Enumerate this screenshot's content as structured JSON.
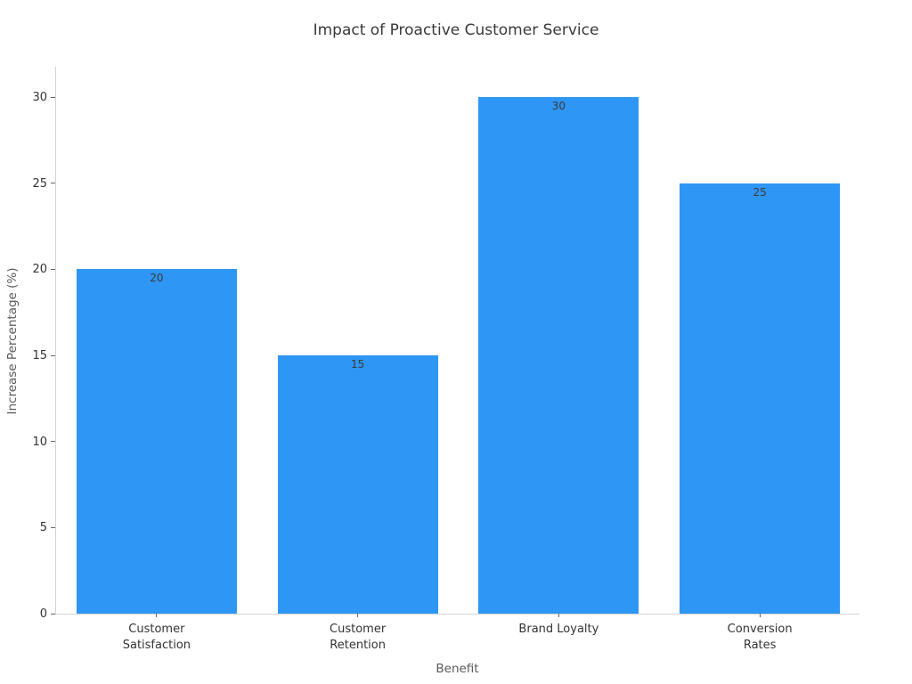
{
  "chart_data": {
    "type": "bar",
    "title": "Impact of Proactive Customer Service",
    "xlabel": "Benefit",
    "ylabel": "Increase Percentage (%)",
    "categories": [
      "Customer\nSatisfaction",
      "Customer\nRetention",
      "Brand Loyalty",
      "Conversion Rates"
    ],
    "values": [
      20,
      15,
      30,
      25
    ],
    "bar_labels": [
      "20",
      "15",
      "30",
      "25"
    ],
    "yticks": [
      0,
      5,
      10,
      15,
      20,
      25,
      30
    ],
    "ylim": [
      0,
      31.8
    ],
    "grid": false,
    "legend": "none",
    "bar_color": "#2E96F5",
    "value_label_color": "#3a3a3a",
    "tick_label_color": "#333333",
    "axis_label_color": "#595959",
    "title_color": "#3a3a3a",
    "spine_color": "#d4d4d4"
  }
}
